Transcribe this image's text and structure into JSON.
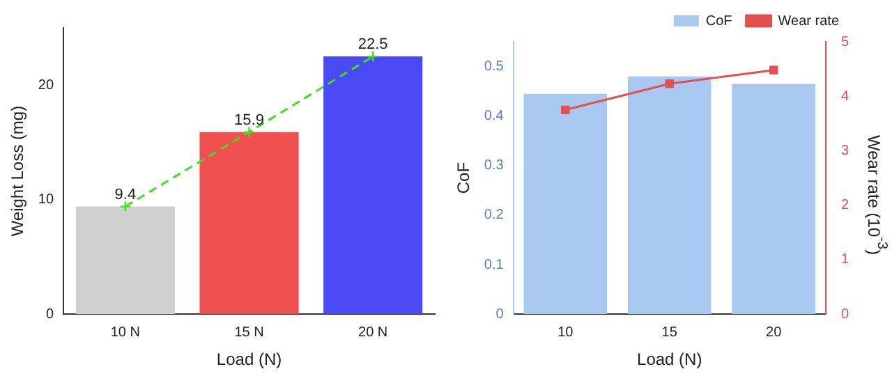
{
  "chart_data": [
    {
      "type": "bar",
      "xlabel": "Load (N)",
      "ylabel": "Weight Loss (mg)",
      "categories": [
        "10 N",
        "15 N",
        "20 N"
      ],
      "series": [
        {
          "colors": [
            "#d0d0d0",
            "#f05050",
            "#4a4af5"
          ],
          "values": [
            9.4,
            15.9,
            22.5
          ],
          "value_labels": [
            "9.4",
            "15.9",
            "22.5"
          ]
        },
        {
          "type": "line",
          "color": "#44dd22",
          "values": [
            9.4,
            15.9,
            22.5
          ],
          "line_style": "dashed",
          "marker": "cross"
        }
      ],
      "ylim": [
        0,
        25
      ],
      "yticks": [
        0,
        10,
        20
      ],
      "grid": false,
      "legend": false
    },
    {
      "type": "bar",
      "xlabel": "Load (N)",
      "ylabel": "CoF",
      "y2label": "Wear rate (10$^{-3}$)",
      "categories": [
        "10",
        "15",
        "20"
      ],
      "series": [
        {
          "name": "CoF",
          "color": "#a9c8f0",
          "values": [
            0.445,
            0.48,
            0.465
          ]
        },
        {
          "type": "line",
          "name": "Wear rate",
          "color": "#e05050",
          "axis": "y2",
          "values": [
            3.75,
            4.23,
            4.48
          ],
          "marker": "square"
        }
      ],
      "ylim": [
        0,
        0.55
      ],
      "yticks": [
        0,
        0.1,
        0.2,
        0.3,
        0.4,
        0.5
      ],
      "y2lim": [
        0,
        5
      ],
      "y2ticks": [
        0,
        1,
        2,
        3,
        4,
        5
      ],
      "grid": false,
      "legend": "top right"
    }
  ]
}
